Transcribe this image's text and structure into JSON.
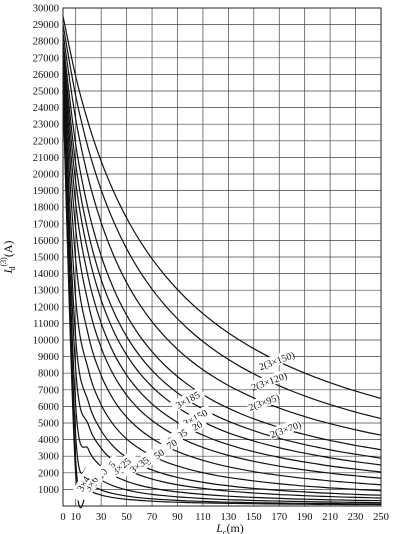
{
  "chart_data": {
    "type": "line",
    "title": "",
    "xlabel_main": "L",
    "xlabel_sub": "c",
    "xlabel_unit": "(m)",
    "ylabel_main": "I",
    "ylabel_sub": "d",
    "ylabel_sup": "(3)",
    "ylabel_unit": "(A)",
    "xlim": [
      0,
      250
    ],
    "ylim": [
      0,
      30000
    ],
    "grid": true,
    "x_ticks": [
      0,
      10,
      30,
      50,
      70,
      90,
      110,
      130,
      150,
      170,
      190,
      210,
      230,
      250
    ],
    "x_tick_labels": [
      "0",
      "10",
      "30",
      "50",
      "70",
      "90",
      "110",
      "130",
      "150",
      "170",
      "190",
      "210",
      "230",
      "250"
    ],
    "y_ticks": [
      1000,
      2000,
      3000,
      4000,
      5000,
      6000,
      7000,
      8000,
      9000,
      10000,
      11000,
      12000,
      13000,
      14000,
      15000,
      16000,
      17000,
      18000,
      19000,
      20000,
      21000,
      22000,
      23000,
      24000,
      25000,
      26000,
      27000,
      28000,
      29000,
      30000
    ],
    "y_tick_labels": [
      "1000",
      "2000",
      "3000",
      "4000",
      "5000",
      "6000",
      "7000",
      "8000",
      "9000",
      "10000",
      "11000",
      "12000",
      "13000",
      "14000",
      "15000",
      "16000",
      "17000",
      "18000",
      "19000",
      "20000",
      "21000",
      "22000",
      "23000",
      "24000",
      "25000",
      "26000",
      "27000",
      "28000",
      "29000",
      "30000"
    ],
    "x": [
      0,
      10,
      20,
      30,
      40,
      50,
      60,
      70,
      80,
      90,
      100,
      110,
      120,
      130,
      140,
      150,
      160,
      170,
      180,
      190,
      200,
      210,
      220,
      230,
      240,
      250
    ],
    "series": [
      {
        "name": "2(3×150)",
        "values": [
          29500,
          25876,
          23046,
          20773,
          18908,
          17349,
          16028,
          14892,
          13905,
          13039,
          12273,
          11591,
          10980,
          10429,
          9930,
          9476,
          9061,
          8680,
          8330,
          8006,
          7706,
          7427,
          7167,
          6924,
          6696,
          6482
        ]
      },
      {
        "name": "2(3×120)",
        "values": [
          29000,
          24700,
          21500,
          19050,
          17100,
          15500,
          14180,
          13060,
          12110,
          11280,
          10550,
          9910,
          9340,
          8830,
          8370,
          7960,
          7580,
          7240,
          6920,
          6630,
          6360,
          6110,
          5880,
          5660,
          5460,
          5270
        ]
      },
      {
        "name": "2(3×95)",
        "values": [
          28500,
          23300,
          19710,
          17080,
          15060,
          13460,
          12170,
          11100,
          10210,
          9440,
          8780,
          8210,
          7710,
          7260,
          6870,
          6510,
          6190,
          5900,
          5630,
          5390,
          5160,
          4960,
          4770,
          4590,
          4420,
          4270
        ]
      },
      {
        "name": "2(3×70)",
        "values": [
          28000,
          21770,
          17810,
          15070,
          13050,
          11500,
          10280,
          9300,
          8480,
          7800,
          7210,
          6710,
          6270,
          5890,
          5550,
          5250,
          4980,
          4730,
          4510,
          4310,
          4120,
          3950,
          3800,
          3650,
          3520,
          3390
        ]
      },
      {
        "name": "3×185",
        "values": [
          27600,
          20600,
          16420,
          13650,
          11690,
          10220,
          9080,
          8170,
          7430,
          6810,
          6290,
          5840,
          5450,
          5110,
          4810,
          4540,
          4290,
          4080,
          3880,
          3700,
          3540,
          3380,
          3240,
          3120,
          3000,
          2880
        ]
      },
      {
        "name": "3×150",
        "values": [
          27300,
          19500,
          15170,
          12410,
          10500,
          9100,
          8030,
          7190,
          6510,
          5940,
          5470,
          5070,
          4720,
          4410,
          4150,
          3910,
          3700,
          3510,
          3340,
          3180,
          3040,
          2900,
          2780,
          2670,
          2570,
          2470
        ]
      },
      {
        "name": "3×120",
        "values": [
          27000,
          18200,
          13720,
          11010,
          9190,
          7890,
          6910,
          6150,
          5540,
          5040,
          4620,
          4270,
          3960,
          3700,
          3470,
          3270,
          3090,
          2930,
          2780,
          2650,
          2530,
          2410,
          2310,
          2220,
          2130,
          2050
        ]
      },
      {
        "name": "3×95",
        "values": [
          26700,
          16700,
          12150,
          9540,
          7860,
          6680,
          5810,
          5150,
          4620,
          4190,
          3830,
          3530,
          3270,
          3050,
          2860,
          2690,
          2540,
          2400,
          2280,
          2170,
          2070,
          1980,
          1890,
          1820,
          1740,
          1680
        ]
      },
      {
        "name": "3×70",
        "values": [
          26400,
          14790,
          10270,
          7870,
          6370,
          5360,
          4630,
          4070,
          3630,
          3280,
          2990,
          2750,
          2540,
          2360,
          2210,
          2070,
          1950,
          1850,
          1750,
          1660,
          1590,
          1510,
          1450,
          1390,
          1330,
          1280
        ]
      },
      {
        "name": "3×50",
        "values": [
          26100,
          12470,
          8190,
          6100,
          4860,
          4040,
          3460,
          3020,
          2680,
          2410,
          2190,
          2010,
          1850,
          1720,
          1610,
          1510,
          1420,
          1340,
          1270,
          1200,
          1150,
          1090,
          1050,
          1000,
          960,
          920
        ]
      },
      {
        "name": "3×35",
        "values": [
          25800,
          10080,
          6260,
          4540,
          3560,
          2930,
          2490,
          2170,
          1920,
          1720,
          1560,
          1430,
          1310,
          1220,
          1130,
          1060,
          1000,
          940,
          890,
          850,
          800,
          770,
          730,
          700,
          670,
          650
        ]
      },
      {
        "name": "3×25",
        "values": [
          25500,
          8210,
          4890,
          3480,
          2700,
          2210,
          1870,
          1620,
          1430,
          1280,
          1160,
          1060,
          970,
          900,
          840,
          780,
          740,
          690,
          660,
          620,
          590,
          570,
          540,
          520,
          500,
          480
        ]
      },
      {
        "name": "3×16",
        "values": [
          25300,
          6010,
          3410,
          2380,
          1830,
          1490,
          1250,
          1080,
          950,
          850,
          770,
          700,
          640,
          590,
          550,
          520,
          490,
          460,
          430,
          410,
          390,
          370,
          360,
          340,
          330,
          320
        ]
      },
      {
        "name": "3×10",
        "values": [
          25100,
          4190,
          2290,
          1570,
          1200,
          970,
          810,
          700,
          620,
          550,
          500,
          450,
          410,
          380,
          360,
          330,
          310,
          300,
          280,
          270,
          250,
          240,
          230,
          220,
          210,
          200
        ]
      },
      {
        "name": "3×6",
        "values": [
          25000,
          2710,
          1430,
          970,
          740,
          600,
          500,
          430,
          380,
          340,
          300,
          280,
          250,
          230,
          220,
          200,
          190,
          180,
          170,
          160,
          150,
          150,
          140,
          130,
          130,
          120
        ]
      },
      {
        "name": "3×4",
        "values": [
          24900,
          1880,
          980,
          660,
          500,
          400,
          340,
          290,
          250,
          230,
          200,
          190,
          170,
          160,
          150,
          140,
          130,
          120,
          110,
          110,
          100,
          100,
          90,
          90,
          90,
          80
        ]
      }
    ],
    "curve_labels": [
      {
        "series": "2(3×150)",
        "text": "2(3×150)",
        "at_x": 168,
        "angle": -20
      },
      {
        "series": "2(3×120)",
        "text": "2(3×120)",
        "at_x": 162,
        "angle": -20
      },
      {
        "series": "2(3×95)",
        "text": "2(3×95)",
        "at_x": 158,
        "angle": -20
      },
      {
        "series": "2(3×70)",
        "text": "2(3×70)",
        "at_x": 175,
        "angle": -20
      },
      {
        "series": "3×185",
        "text": "3×185",
        "at_x": 98,
        "angle": -28
      },
      {
        "series": "3×150",
        "text": "3×150",
        "at_x": 104,
        "angle": -28
      },
      {
        "series": "3×120",
        "text": "3×120",
        "at_x": 100,
        "angle": -28
      },
      {
        "series": "3×95",
        "text": "3×95",
        "at_x": 90,
        "angle": -30
      },
      {
        "series": "3×70",
        "text": "3×70",
        "at_x": 82,
        "angle": -32
      },
      {
        "series": "3×50",
        "text": "3×50",
        "at_x": 72,
        "angle": -34
      },
      {
        "series": "3×35",
        "text": "3×35",
        "at_x": 60,
        "angle": -36
      },
      {
        "series": "3×25",
        "text": "3×25",
        "at_x": 46,
        "angle": -40
      },
      {
        "series": "3×16",
        "text": "3×16",
        "at_x": 34,
        "angle": -45
      },
      {
        "series": "3×10",
        "text": "3×10",
        "at_x": 28,
        "angle": -50
      },
      {
        "series": "3×6",
        "text": "3×6",
        "at_x": 22,
        "angle": -55
      },
      {
        "series": "3×4",
        "text": "3×4",
        "at_x": 16,
        "angle": -60
      }
    ]
  }
}
